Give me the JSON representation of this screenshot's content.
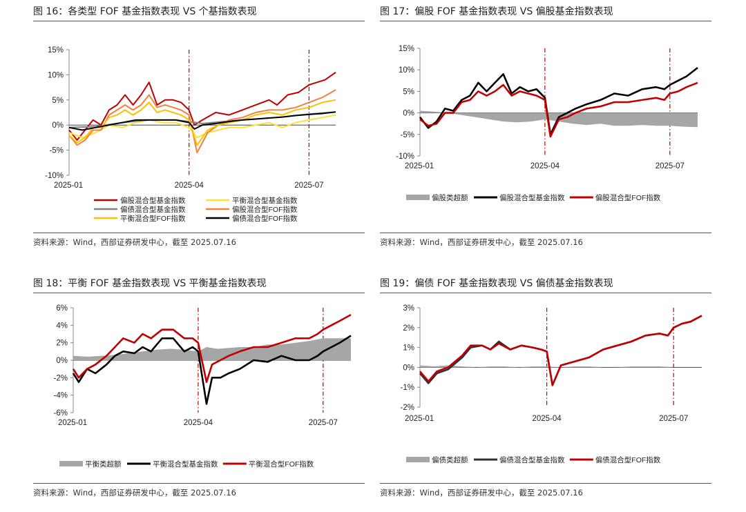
{
  "source_note": "资料来源：Wind，西部证券研发中心，截至 2025.07.16",
  "chart_data": [
    {
      "id": "fig16",
      "type": "line",
      "title": "图 16：各类型 FOF 基金指数表现 VS 个基指数表现",
      "ylim": [
        -10,
        15
      ],
      "yticks": [
        15,
        10,
        5,
        0,
        -5,
        -10
      ],
      "ytick_labels": [
        "15%",
        "10%",
        "5%",
        "0%",
        "-5%",
        "-10%"
      ],
      "xlabels": [
        {
          "t": 0.0,
          "label": "2025-01"
        },
        {
          "t": 0.45,
          "label": "2025-04"
        },
        {
          "t": 0.9,
          "label": "2025-07"
        }
      ],
      "vlines": [
        0.45,
        0.9
      ],
      "series": [
        {
          "name": "偏股混合型基金指数",
          "color": "#c00000",
          "x": [
            0,
            0.03,
            0.06,
            0.09,
            0.12,
            0.15,
            0.18,
            0.21,
            0.24,
            0.27,
            0.3,
            0.33,
            0.36,
            0.39,
            0.42,
            0.45,
            0.47,
            0.5,
            0.55,
            0.6,
            0.65,
            0.7,
            0.75,
            0.78,
            0.82,
            0.86,
            0.9,
            0.93,
            0.96,
            1.0
          ],
          "y": [
            -1,
            -3,
            -1,
            1,
            0,
            3,
            4,
            6,
            4,
            6,
            8.5,
            4,
            5,
            5,
            4.5,
            3,
            0,
            1,
            2.5,
            2,
            3,
            4,
            5,
            4,
            6,
            6.5,
            8,
            8.5,
            9,
            10.5
          ]
        },
        {
          "name": "平衡混合型基金指数",
          "color": "#ffe033",
          "x": [
            0,
            0.05,
            0.1,
            0.15,
            0.2,
            0.25,
            0.3,
            0.35,
            0.4,
            0.45,
            0.48,
            0.52,
            0.56,
            0.6,
            0.65,
            0.7,
            0.75,
            0.8,
            0.85,
            0.9,
            0.95,
            1.0
          ],
          "y": [
            -1.5,
            -2.5,
            -1.5,
            0,
            -0.5,
            0.5,
            1,
            0.5,
            0.5,
            -0.5,
            -2.5,
            -1.5,
            -1,
            -0.5,
            -0.5,
            0,
            0.5,
            -0.5,
            0.5,
            1,
            1.5,
            2
          ]
        },
        {
          "name": "偏债混合型基金指数",
          "color": "#808080",
          "x": [
            0,
            0.1,
            0.2,
            0.3,
            0.4,
            0.45,
            0.5,
            0.6,
            0.7,
            0.8,
            0.9,
            1.0
          ],
          "y": [
            -0.5,
            -0.3,
            0.5,
            1,
            1,
            0.7,
            0.3,
            0.8,
            1.2,
            1.6,
            2.2,
            2.6
          ]
        },
        {
          "name": "偏股混合型FOF指数",
          "color": "#f08040",
          "x": [
            0,
            0.03,
            0.06,
            0.09,
            0.12,
            0.15,
            0.18,
            0.21,
            0.24,
            0.27,
            0.3,
            0.33,
            0.36,
            0.39,
            0.42,
            0.45,
            0.48,
            0.52,
            0.56,
            0.6,
            0.65,
            0.7,
            0.75,
            0.8,
            0.85,
            0.9,
            0.95,
            1.0
          ],
          "y": [
            -2,
            -4,
            -3,
            -1,
            -1,
            2,
            3,
            4,
            3,
            4,
            6,
            3.5,
            4,
            3.5,
            3,
            2,
            -5.5,
            -1.5,
            0,
            1,
            1.5,
            2.5,
            3,
            3,
            3.5,
            4.5,
            5.5,
            7
          ]
        },
        {
          "name": "平衡混合型FOF指数",
          "color": "#ffc000",
          "x": [
            0,
            0.03,
            0.06,
            0.09,
            0.12,
            0.15,
            0.18,
            0.21,
            0.24,
            0.27,
            0.3,
            0.33,
            0.36,
            0.39,
            0.42,
            0.45,
            0.48,
            0.52,
            0.56,
            0.6,
            0.65,
            0.7,
            0.75,
            0.8,
            0.85,
            0.9,
            0.95,
            1.0
          ],
          "y": [
            -2,
            -3.5,
            -2.5,
            -0.5,
            -0.5,
            1.5,
            2,
            3,
            2,
            3,
            4.5,
            2.5,
            3,
            2.5,
            2,
            1,
            -4,
            -1,
            0,
            0.5,
            1,
            2,
            2.5,
            2,
            3,
            3.5,
            4.5,
            5
          ]
        },
        {
          "name": "偏债混合型FOF指数",
          "color": "#000000",
          "x": [
            0,
            0.05,
            0.1,
            0.15,
            0.2,
            0.25,
            0.3,
            0.35,
            0.4,
            0.45,
            0.47,
            0.5,
            0.55,
            0.6,
            0.65,
            0.7,
            0.75,
            0.8,
            0.85,
            0.9,
            0.95,
            1.0
          ],
          "y": [
            -0.5,
            -1,
            -0.5,
            0,
            0.5,
            1,
            1,
            1,
            1,
            0.5,
            -0.8,
            0,
            0.3,
            0.7,
            1,
            1.2,
            1.4,
            1.6,
            1.9,
            2.1,
            2.3,
            2.6
          ]
        }
      ],
      "legend": [
        {
          "label": "偏股混合型基金指数",
          "color": "#c00000"
        },
        {
          "label": "平衡混合型基金指数",
          "color": "#ffe033"
        },
        {
          "label": "偏债混合型基金指数",
          "color": "#808080"
        },
        {
          "label": "偏股混合型FOF指数",
          "color": "#f08040"
        },
        {
          "label": "平衡混合型FOF指数",
          "color": "#ffc000"
        },
        {
          "label": "偏债混合型FOF指数",
          "color": "#000000"
        }
      ]
    },
    {
      "id": "fig17",
      "type": "line",
      "title": "图 17：偏股 FOF 基金指数表现 VS 偏股基金指数表现",
      "ylim": [
        -10,
        15
      ],
      "yticks": [
        15,
        10,
        5,
        0,
        -5,
        -10
      ],
      "ytick_labels": [
        "15%",
        "10%",
        "5%",
        "0%",
        "-5%",
        "-10%"
      ],
      "xlabels": [
        {
          "t": 0.0,
          "label": "2025-01"
        },
        {
          "t": 0.45,
          "label": "2025-04"
        },
        {
          "t": 0.9,
          "label": "2025-07"
        }
      ],
      "vlines": [
        0.45,
        0.9
      ],
      "area": {
        "name": "偏股类超额",
        "color": "#a6a6a6",
        "x": [
          0,
          0.05,
          0.1,
          0.15,
          0.2,
          0.25,
          0.3,
          0.35,
          0.4,
          0.45,
          0.5,
          0.55,
          0.6,
          0.65,
          0.7,
          0.75,
          0.8,
          0.85,
          0.9,
          0.95,
          1.0
        ],
        "y": [
          0.5,
          0.3,
          0,
          -0.5,
          -1,
          -1.5,
          -2,
          -2.2,
          -2,
          -1.5,
          -2,
          -2.5,
          -2.8,
          -2.5,
          -3,
          -3,
          -2.8,
          -3,
          -3,
          -3.2,
          -3.3
        ]
      },
      "series": [
        {
          "name": "偏股混合型基金指数",
          "color": "#000000",
          "x": [
            0,
            0.03,
            0.06,
            0.09,
            0.12,
            0.15,
            0.18,
            0.21,
            0.24,
            0.27,
            0.3,
            0.33,
            0.36,
            0.39,
            0.42,
            0.45,
            0.47,
            0.5,
            0.53,
            0.56,
            0.6,
            0.65,
            0.7,
            0.75,
            0.8,
            0.85,
            0.88,
            0.9,
            0.93,
            0.96,
            1.0
          ],
          "y": [
            -1,
            -3.5,
            -2,
            1,
            0.5,
            3,
            4,
            7,
            5,
            7,
            9,
            4.5,
            6,
            5,
            5.5,
            3.5,
            -5,
            -1,
            0,
            1,
            2,
            3,
            4.5,
            4,
            5.5,
            6,
            5.5,
            6.5,
            7.5,
            8.5,
            10.5
          ]
        },
        {
          "name": "偏股混合型FOF指数",
          "color": "#c00000",
          "x": [
            0,
            0.03,
            0.06,
            0.09,
            0.12,
            0.15,
            0.18,
            0.21,
            0.24,
            0.27,
            0.3,
            0.33,
            0.36,
            0.39,
            0.42,
            0.45,
            0.47,
            0.5,
            0.53,
            0.56,
            0.6,
            0.65,
            0.7,
            0.75,
            0.8,
            0.85,
            0.88,
            0.9,
            0.93,
            0.96,
            1.0
          ],
          "y": [
            -1.5,
            -3,
            -2.5,
            0,
            0,
            2.5,
            3,
            5,
            4,
            5,
            6.5,
            4,
            5,
            4.5,
            4,
            3,
            -5.5,
            -1.5,
            -1,
            0,
            1,
            1.5,
            2.5,
            2.5,
            3,
            3.5,
            3,
            4.5,
            5,
            6,
            7
          ]
        }
      ],
      "legend": [
        {
          "label": "偏股类超额",
          "color": "#a6a6a6",
          "kind": "bar"
        },
        {
          "label": "偏股混合型基金指数",
          "color": "#000000"
        },
        {
          "label": "偏股混合型FOF指数",
          "color": "#c00000"
        }
      ]
    },
    {
      "id": "fig18",
      "type": "line",
      "title": "图 18：平衡 FOF 基金指数表现 VS 平衡基金指数表现",
      "ylim": [
        -6,
        6
      ],
      "yticks": [
        6,
        4,
        2,
        0,
        -2,
        -4,
        -6
      ],
      "ytick_labels": [
        "6%",
        "4%",
        "2%",
        "0%",
        "-2%",
        "-4%",
        "-6%"
      ],
      "xlabels": [
        {
          "t": 0.0,
          "label": "2025-01"
        },
        {
          "t": 0.45,
          "label": "2025-04"
        },
        {
          "t": 0.9,
          "label": "2025-07"
        }
      ],
      "vlines": [
        0.45,
        0.9
      ],
      "area": {
        "name": "平衡类超额",
        "color": "#a6a6a6",
        "x": [
          0,
          0.05,
          0.1,
          0.15,
          0.2,
          0.25,
          0.3,
          0.35,
          0.4,
          0.45,
          0.48,
          0.52,
          0.56,
          0.6,
          0.65,
          0.7,
          0.75,
          0.8,
          0.85,
          0.9,
          0.95,
          1.0
        ],
        "y": [
          0.5,
          0.4,
          0.5,
          0.6,
          0.8,
          1,
          1.2,
          1.3,
          1.2,
          1,
          1.5,
          1.3,
          1.4,
          1.5,
          1.5,
          1.8,
          1.8,
          2,
          2.2,
          2.5,
          2.5,
          2.5
        ]
      },
      "series": [
        {
          "name": "平衡混合型基金指数",
          "color": "#000000",
          "x": [
            0,
            0.02,
            0.05,
            0.08,
            0.12,
            0.15,
            0.18,
            0.22,
            0.25,
            0.28,
            0.32,
            0.36,
            0.4,
            0.43,
            0.45,
            0.48,
            0.5,
            0.53,
            0.56,
            0.6,
            0.65,
            0.7,
            0.75,
            0.8,
            0.85,
            0.88,
            0.9,
            0.93,
            0.96,
            1.0
          ],
          "y": [
            -1.5,
            -2.5,
            -1,
            -1.5,
            -0.5,
            0.5,
            1,
            0.8,
            1.5,
            1,
            2.5,
            2.5,
            1,
            1.5,
            1,
            -5,
            -2,
            -2,
            -1.5,
            -1,
            0,
            -0.2,
            0.5,
            0,
            0,
            0.5,
            1,
            1.5,
            2,
            2.8
          ]
        },
        {
          "name": "平衡混合型FOF指数",
          "color": "#c00000",
          "x": [
            0,
            0.02,
            0.05,
            0.08,
            0.12,
            0.15,
            0.18,
            0.22,
            0.25,
            0.28,
            0.32,
            0.36,
            0.4,
            0.43,
            0.45,
            0.48,
            0.5,
            0.53,
            0.56,
            0.6,
            0.65,
            0.7,
            0.75,
            0.8,
            0.85,
            0.88,
            0.9,
            0.93,
            0.96,
            1.0
          ],
          "y": [
            -1,
            -2,
            -1,
            -0.5,
            0.5,
            1.5,
            2.5,
            2,
            3,
            2.5,
            3.5,
            3.5,
            2.5,
            2.5,
            2,
            -2.5,
            -0.5,
            0,
            0.5,
            1,
            1.5,
            1.5,
            2,
            2.5,
            2.5,
            3,
            3.5,
            4,
            4.5,
            5.2
          ]
        }
      ],
      "legend": [
        {
          "label": "平衡类超额",
          "color": "#a6a6a6",
          "kind": "bar"
        },
        {
          "label": "平衡混合型基金指数",
          "color": "#000000"
        },
        {
          "label": "平衡混合型FOF指数",
          "color": "#c00000"
        }
      ]
    },
    {
      "id": "fig19",
      "type": "line",
      "title": "图 19：偏债 FOF 基金指数表现 VS 偏债基金指数表现",
      "ylim": [
        -2,
        3
      ],
      "yticks": [
        3,
        2,
        1,
        0,
        -1,
        -2
      ],
      "ytick_labels": [
        "3%",
        "2%",
        "1%",
        "0%",
        "-1%",
        "-2%"
      ],
      "xlabels": [
        {
          "t": 0.0,
          "label": "2025-01"
        },
        {
          "t": 0.45,
          "label": "2025-04"
        },
        {
          "t": 0.9,
          "label": "2025-07"
        }
      ],
      "vlines": [
        0.45,
        0.9
      ],
      "area": {
        "name": "偏债类超额",
        "color": "#a6a6a6",
        "x": [
          0,
          0.05,
          0.1,
          0.15,
          0.2,
          0.25,
          0.3,
          0.35,
          0.4,
          0.45,
          0.5,
          0.55,
          0.6,
          0.65,
          0.7,
          0.75,
          0.8,
          0.85,
          0.9,
          0.95,
          1.0
        ],
        "y": [
          0.1,
          0.05,
          0.1,
          0.05,
          0,
          0.05,
          0.05,
          0,
          0.05,
          0.05,
          0,
          0.05,
          0.05,
          0,
          0,
          0.05,
          0.05,
          0.05,
          0,
          0,
          0
        ]
      },
      "series": [
        {
          "name": "偏债混合型基金指数",
          "color": "#2b2f3a",
          "x": [
            0,
            0.03,
            0.06,
            0.1,
            0.15,
            0.18,
            0.22,
            0.25,
            0.28,
            0.32,
            0.36,
            0.4,
            0.43,
            0.45,
            0.47,
            0.5,
            0.55,
            0.6,
            0.65,
            0.7,
            0.75,
            0.8,
            0.85,
            0.88,
            0.9,
            0.93,
            0.96,
            1.0
          ],
          "y": [
            -0.3,
            -0.8,
            -0.3,
            -0.1,
            0.5,
            1.0,
            1.1,
            0.9,
            1.3,
            0.9,
            1.1,
            1.0,
            0.9,
            0.8,
            -0.9,
            0.1,
            0.3,
            0.5,
            0.9,
            1.1,
            1.3,
            1.6,
            1.7,
            1.6,
            2.0,
            2.2,
            2.3,
            2.6
          ]
        },
        {
          "name": "偏债混合型FOF指数",
          "color": "#c00000",
          "x": [
            0,
            0.03,
            0.06,
            0.1,
            0.15,
            0.18,
            0.22,
            0.25,
            0.28,
            0.32,
            0.36,
            0.4,
            0.43,
            0.45,
            0.47,
            0.5,
            0.55,
            0.6,
            0.65,
            0.7,
            0.75,
            0.8,
            0.85,
            0.88,
            0.9,
            0.93,
            0.96,
            1.0
          ],
          "y": [
            -0.2,
            -0.7,
            -0.2,
            0,
            0.6,
            1.1,
            1.1,
            0.9,
            1.2,
            0.9,
            1.1,
            1.0,
            0.9,
            0.8,
            -0.9,
            0.1,
            0.3,
            0.5,
            0.9,
            1.1,
            1.3,
            1.6,
            1.7,
            1.6,
            2.0,
            2.2,
            2.3,
            2.6
          ]
        }
      ],
      "legend": [
        {
          "label": "偏债类超额",
          "color": "#a6a6a6",
          "kind": "bar"
        },
        {
          "label": "偏债混合型基金指数",
          "color": "#2b2f3a"
        },
        {
          "label": "偏债混合型FOF指数",
          "color": "#c00000"
        }
      ]
    }
  ]
}
